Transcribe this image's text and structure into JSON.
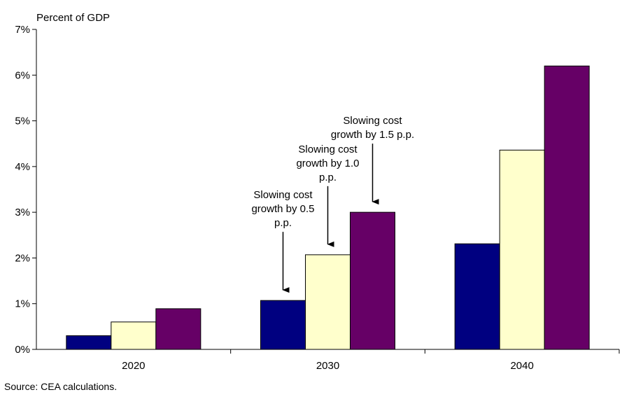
{
  "chart_data": {
    "type": "bar",
    "ylabel": "Percent of GDP",
    "categories": [
      "2020",
      "2030",
      "2040"
    ],
    "series": [
      {
        "color": "#000080",
        "values": [
          0.3,
          1.07,
          2.31
        ]
      },
      {
        "color": "#FFFFCC",
        "values": [
          0.6,
          2.07,
          4.36
        ]
      },
      {
        "color": "#660066",
        "values": [
          0.89,
          3.0,
          6.2
        ]
      }
    ],
    "ylim": [
      0,
      7
    ],
    "yticks": [
      "0%",
      "1%",
      "2%",
      "3%",
      "4%",
      "5%",
      "6%",
      "7%"
    ],
    "grid": false,
    "annotations": [
      {
        "text": [
          "Slowing cost",
          "growth by 0.5",
          "p.p."
        ],
        "category": 1,
        "series": 0
      },
      {
        "text": [
          "Slowing cost",
          "growth by 1.0",
          "p.p."
        ],
        "category": 1,
        "series": 1
      },
      {
        "text": [
          "Slowing cost",
          "growth by 1.5 p.p."
        ],
        "category": 1,
        "series": 2
      }
    ]
  },
  "source": "Source: CEA calculations."
}
